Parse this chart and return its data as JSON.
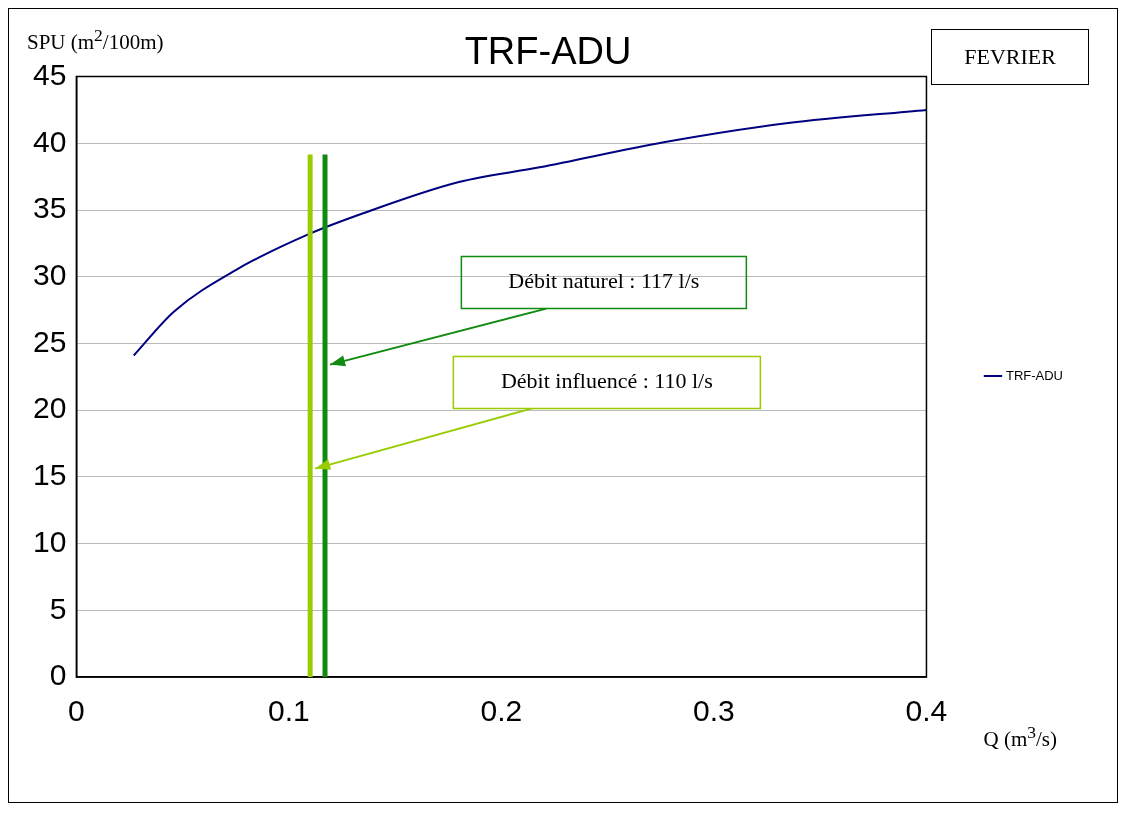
{
  "chart_data": {
    "type": "line",
    "title": "TRF-ADU",
    "xlabel": "Q (m$^{3}$/s)",
    "ylabel": "SPU (m$^{2}$/100m)",
    "annotations": [
      "FEVRIER"
    ],
    "series": [
      {
        "name": "TRF-ADU",
        "color": "#000080",
        "x": [
          0.027,
          0.046,
          0.075,
          0.108,
          0.134,
          0.18,
          0.218,
          0.277,
          0.334,
          0.4
        ],
        "values": [
          24.1,
          27.4,
          30.5,
          33.1,
          34.7,
          37.1,
          38.2,
          40.1,
          41.5,
          42.5
        ]
      }
    ],
    "xlim": [
      0,
      0.4
    ],
    "xticks": [
      0,
      0.1,
      0.2,
      0.3,
      0.4
    ],
    "ylim": [
      0,
      45
    ],
    "yticks": [
      0,
      5,
      10,
      15,
      20,
      25,
      30,
      35,
      40,
      45
    ],
    "grid": "y",
    "legend": "right",
    "marker": "none",
    "line_style": "solid",
    "ref_lines": [
      {
        "axis": "x",
        "value": 0.117,
        "label": "Débit naturel : 117 l/s",
        "color": "#108a10"
      },
      {
        "axis": "x",
        "value": 0.11,
        "label": "Débit influencé : 110 l/s",
        "color": "#99cc00"
      }
    ]
  }
}
